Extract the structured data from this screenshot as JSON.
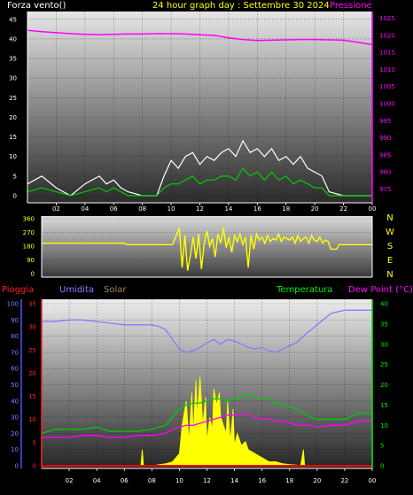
{
  "header": {
    "title": "24 hour graph day : Settembre 30 2024",
    "left_label": "Forza vento()",
    "right_label": "Pressione"
  },
  "bottom_header": {
    "rain": "Pioggia",
    "humidity": "Umidita",
    "solar": "Solar",
    "temperature": "Temperatura",
    "dewpoint": "Dew Point (°C)"
  },
  "colors": {
    "wind": "#ffffff",
    "gust": "#00cc00",
    "pressure": "#ff00ff",
    "direction": "#ffff00",
    "rain": "#ff0000",
    "humidity": "#8080ff",
    "solar": "#ffff00",
    "temperature": "#00cc00",
    "dewpoint": "#ff00ff"
  },
  "chart_data": [
    {
      "type": "line",
      "x_ticks": [
        "02",
        "04",
        "06",
        "08",
        "10",
        "12",
        "14",
        "16",
        "18",
        "20",
        "22",
        "00"
      ],
      "xlim": [
        0,
        24
      ],
      "y_left": {
        "ticks": [
          "0",
          "5",
          "10",
          "15",
          "20",
          "25",
          "30",
          "35",
          "40",
          "45"
        ],
        "ylim": [
          0,
          47
        ]
      },
      "y_right": {
        "ticks": [
          "975",
          "980",
          "985",
          "990",
          "995",
          "1000",
          "1005",
          "1010",
          "1015",
          "1020",
          "1025"
        ],
        "ylim": [
          973,
          1027
        ]
      },
      "grid": true,
      "series": [
        {
          "name": "Pressione",
          "axis": "right",
          "x": [
            0,
            1,
            2,
            3,
            4,
            5,
            6,
            7,
            8,
            9,
            10,
            11,
            12,
            13,
            14,
            15,
            16,
            17,
            18,
            19,
            20,
            21,
            22,
            23,
            24
          ],
          "values": [
            1021.5,
            1021.1,
            1020.8,
            1020.5,
            1020.3,
            1020.2,
            1020.3,
            1020.4,
            1020.4,
            1020.5,
            1020.5,
            1020.4,
            1020.2,
            1020.0,
            1019.3,
            1018.8,
            1018.5,
            1018.6,
            1018.7,
            1018.8,
            1018.8,
            1018.7,
            1018.6,
            1018.0,
            1017.3
          ]
        },
        {
          "axis": "left",
          "x": [
            0,
            1,
            2,
            3,
            4,
            5,
            5.5,
            6,
            6.5,
            7,
            8,
            9,
            9.5,
            10,
            10.5,
            11,
            11.5,
            12,
            12.5,
            13,
            13.5,
            14,
            14.5,
            15,
            15.5,
            16,
            16.5,
            17,
            17.5,
            18,
            18.5,
            19,
            19.5,
            20,
            20.5,
            21,
            22,
            23,
            24
          ],
          "values": [
            3,
            5,
            2,
            0,
            3,
            5,
            3,
            4,
            2,
            1,
            0,
            0,
            5,
            9,
            7,
            10,
            11,
            8,
            10,
            9,
            11,
            12,
            10,
            14,
            11,
            12,
            10,
            12,
            9,
            10,
            8,
            10,
            7,
            6,
            5,
            1,
            0,
            0,
            0
          ]
        },
        {
          "axis": "left",
          "x": [
            0,
            1,
            2,
            3,
            4,
            5,
            5.5,
            6,
            6.5,
            7,
            8,
            9,
            9.5,
            10,
            10.5,
            11,
            11.5,
            12,
            12.5,
            13,
            13.5,
            14,
            14.5,
            15,
            15.5,
            16,
            16.5,
            17,
            17.5,
            18,
            18.5,
            19,
            19.5,
            20,
            20.5,
            21,
            22,
            23,
            24
          ],
          "values": [
            1,
            2,
            1,
            0,
            1,
            2,
            1,
            2,
            1,
            0,
            0,
            0,
            2,
            3,
            3,
            4,
            5,
            3,
            4,
            4,
            5,
            5,
            4,
            7,
            5,
            6,
            4,
            6,
            4,
            5,
            3,
            4,
            3,
            2,
            2,
            0,
            0,
            0,
            0
          ]
        }
      ]
    },
    {
      "type": "line",
      "x_ticks": [
        "02",
        "04",
        "06",
        "08",
        "10",
        "12",
        "14",
        "16",
        "18",
        "20",
        "22",
        "00"
      ],
      "xlim": [
        0,
        24
      ],
      "y_left": {
        "ticks": [
          "0",
          "90",
          "180",
          "270",
          "360"
        ],
        "ylim": [
          0,
          360
        ]
      },
      "y_right": {
        "ticks": [
          "N",
          "W",
          "S",
          "E",
          "N"
        ]
      },
      "grid": true,
      "series": [
        {
          "axis": "left",
          "x": [
            0,
            6,
            6.2,
            9,
            9.5,
            10,
            10.2,
            10.4,
            10.6,
            10.8,
            11,
            11.2,
            11.4,
            11.6,
            11.8,
            12,
            12.2,
            12.4,
            12.6,
            12.8,
            13,
            13.2,
            13.4,
            13.6,
            13.8,
            14,
            14.2,
            14.4,
            14.6,
            14.8,
            15,
            15.2,
            15.4,
            15.6,
            15.8,
            16,
            16.2,
            16.4,
            16.6,
            16.8,
            17,
            17.2,
            17.4,
            17.6,
            17.8,
            18,
            18.2,
            18.4,
            18.6,
            18.8,
            19,
            19.2,
            19.4,
            19.6,
            19.8,
            20,
            20.2,
            20.4,
            20.6,
            20.8,
            21,
            21.2,
            21.4,
            21.6,
            21.8,
            22,
            24
          ],
          "values": [
            200,
            200,
            190,
            190,
            190,
            300,
            40,
            250,
            20,
            120,
            240,
            100,
            260,
            30,
            200,
            280,
            180,
            230,
            110,
            260,
            200,
            300,
            170,
            240,
            140,
            250,
            210,
            260,
            190,
            240,
            40,
            250,
            160,
            260,
            220,
            240,
            200,
            250,
            210,
            230,
            220,
            260,
            210,
            240,
            230,
            220,
            240,
            200,
            250,
            210,
            230,
            240,
            200,
            250,
            220,
            210,
            240,
            200,
            220,
            210,
            160,
            160,
            160,
            190,
            190,
            190,
            190
          ]
        }
      ]
    },
    {
      "type": "line",
      "x_ticks": [
        "02",
        "04",
        "06",
        "08",
        "10",
        "12",
        "14",
        "16",
        "18",
        "20",
        "22",
        "00"
      ],
      "xlim": [
        0,
        24
      ],
      "y_left_outer": {
        "ticks": [
          "0",
          "10",
          "20",
          "30",
          "40",
          "50",
          "60",
          "70",
          "80",
          "90",
          "100"
        ],
        "ylim": [
          0,
          100
        ]
      },
      "y_left_inner": {
        "ticks": [
          "0",
          "5",
          "10",
          "15",
          "20",
          "25",
          "30",
          "35"
        ],
        "ylim": [
          0,
          35
        ]
      },
      "y_right": {
        "ticks": [
          "0",
          "5",
          "10",
          "15",
          "20",
          "25",
          "30",
          "35",
          "40"
        ],
        "ylim": [
          0,
          40
        ]
      },
      "grid": true,
      "series": [
        {
          "name": "Umidita",
          "axis": "outer",
          "x": [
            0,
            1,
            2,
            3,
            4,
            5,
            6,
            7,
            8,
            8.5,
            9,
            9.5,
            10,
            10.5,
            11,
            11.5,
            12,
            12.5,
            13,
            13.5,
            14,
            14.5,
            15,
            15.5,
            16,
            16.5,
            17,
            17.5,
            18,
            18.5,
            19,
            20,
            21,
            22,
            23,
            24
          ],
          "values": [
            89,
            89,
            90,
            90,
            89,
            88,
            87,
            87,
            87,
            86,
            84,
            78,
            72,
            70,
            71,
            73,
            76,
            78,
            75,
            78,
            77,
            75,
            73,
            72,
            73,
            71,
            70,
            72,
            74,
            76,
            80,
            87,
            94,
            96,
            96,
            96
          ]
        },
        {
          "name": "Solar",
          "axis": "right",
          "x": [
            0,
            7.2,
            7.3,
            7.4,
            8,
            9,
            9.5,
            10,
            10.2,
            10.5,
            10.7,
            10.9,
            11.0,
            11.2,
            11.3,
            11.5,
            11.7,
            11.9,
            12.0,
            12.2,
            12.4,
            12.5,
            12.7,
            12.9,
            13.0,
            13.2,
            13.4,
            13.5,
            13.7,
            13.9,
            14.0,
            14.2,
            14.5,
            14.8,
            15,
            15.5,
            16,
            16.5,
            17,
            17.5,
            18,
            18.5,
            18.8,
            19,
            19.1,
            24
          ],
          "values": [
            0,
            0,
            4,
            0,
            0,
            0.5,
            1,
            3,
            10,
            16,
            6,
            18,
            8,
            21,
            12,
            22,
            10,
            17,
            6,
            12,
            9,
            19,
            15,
            18,
            12,
            10,
            8,
            16,
            6,
            14,
            5,
            8,
            5,
            6,
            4,
            3,
            2,
            1,
            1,
            0.5,
            0.3,
            0.2,
            0,
            4,
            0,
            0
          ]
        },
        {
          "name": "Temperatura",
          "axis": "right",
          "x": [
            0,
            1,
            2,
            3,
            4,
            5,
            6,
            7,
            8,
            9,
            9.5,
            10,
            10.5,
            11,
            11.5,
            12,
            12.5,
            13,
            13.5,
            14,
            14.5,
            15,
            15.5,
            16,
            16.5,
            17,
            17.5,
            18,
            18.5,
            19,
            19.5,
            20,
            21,
            22,
            23,
            24
          ],
          "values": [
            8,
            9,
            9,
            9,
            9.5,
            8.5,
            8.5,
            8.5,
            9,
            10,
            12,
            14,
            15,
            15.5,
            15.5,
            16,
            16.5,
            16.5,
            16,
            16.5,
            17,
            17.5,
            17,
            16.5,
            16.5,
            15.5,
            15,
            14.5,
            14,
            13,
            12,
            11.5,
            11.5,
            11.5,
            13,
            13
          ]
        },
        {
          "name": "Dew Point (°C)",
          "axis": "right",
          "x": [
            0,
            1,
            2,
            3,
            4,
            5,
            6,
            7,
            8,
            9,
            9.5,
            10,
            10.5,
            11,
            11.5,
            12,
            12.5,
            13,
            13.5,
            14,
            14.5,
            15,
            15.5,
            16,
            16.5,
            17,
            17.5,
            18,
            18.5,
            19,
            19.5,
            20,
            21,
            22,
            23,
            24
          ],
          "values": [
            7,
            7,
            7,
            7.5,
            7.5,
            7,
            7,
            7.5,
            7.5,
            8,
            9,
            9.5,
            10,
            10,
            10.5,
            11,
            11.5,
            12,
            12.5,
            12.5,
            13,
            12.5,
            12,
            11.5,
            11.5,
            11,
            11,
            10.5,
            10,
            10,
            10,
            9.5,
            10,
            10,
            11,
            11
          ]
        },
        {
          "name": "Pioggia",
          "axis": "inner",
          "x": [
            0,
            24
          ],
          "values": [
            0,
            0
          ]
        }
      ]
    }
  ]
}
